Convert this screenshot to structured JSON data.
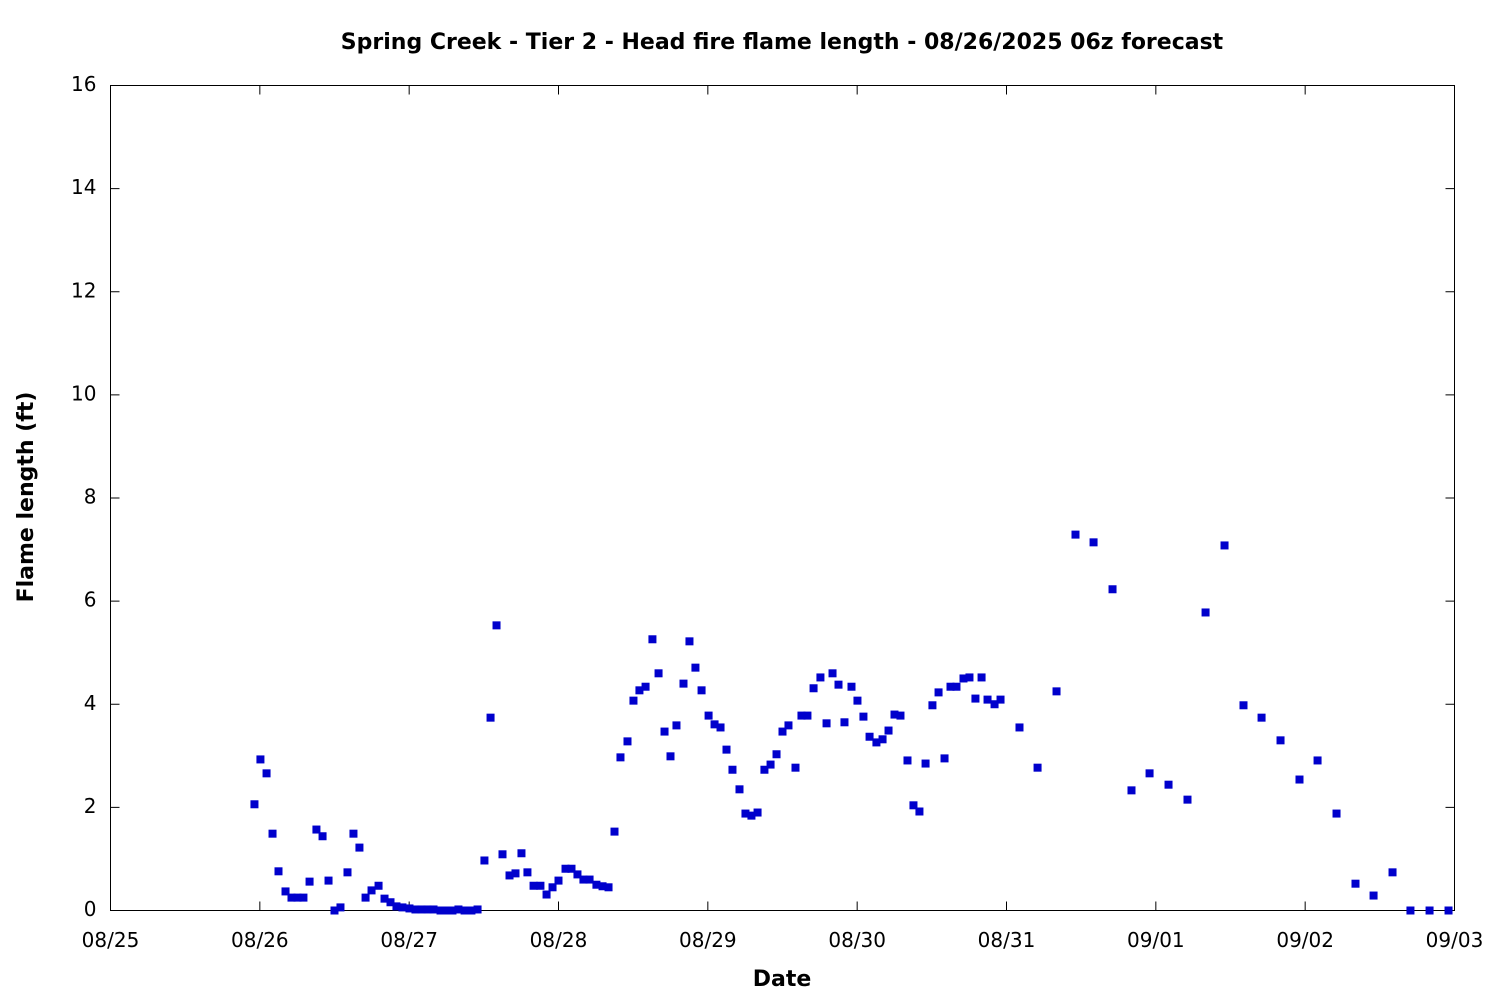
{
  "chart_data": {
    "type": "scatter",
    "title": "Spring Creek - Tier 2 - Head fire flame length - 08/26/2025 06z forecast",
    "x_label": "Date",
    "y_label": "Flame length (ft)",
    "color": "#0000cc",
    "xlim": [
      0,
      9
    ],
    "ylim": [
      0,
      16
    ],
    "grid": false,
    "xticks": [
      {
        "value": 0,
        "label": "08/25"
      },
      {
        "value": 1,
        "label": "08/26"
      },
      {
        "value": 2,
        "label": "08/27"
      },
      {
        "value": 3,
        "label": "08/28"
      },
      {
        "value": 4,
        "label": "08/29"
      },
      {
        "value": 5,
        "label": "08/30"
      },
      {
        "value": 6,
        "label": "08/31"
      },
      {
        "value": 7,
        "label": "09/01"
      },
      {
        "value": 8,
        "label": "09/02"
      },
      {
        "value": 9,
        "label": "09/03"
      }
    ],
    "yticks": [
      0,
      2,
      4,
      6,
      8,
      10,
      12,
      14,
      16
    ],
    "x": [
      0.964,
      1.004,
      1.045,
      1.085,
      1.125,
      1.172,
      1.212,
      1.252,
      1.292,
      1.333,
      1.379,
      1.42,
      1.46,
      1.5,
      1.54,
      1.587,
      1.627,
      1.667,
      1.708,
      1.748,
      1.795,
      1.835,
      1.875,
      1.915,
      1.955,
      2.002,
      2.042,
      2.083,
      2.123,
      2.163,
      2.21,
      2.25,
      2.29,
      2.33,
      2.371,
      2.417,
      2.458,
      2.504,
      2.545,
      2.585,
      2.625,
      2.672,
      2.712,
      2.752,
      2.792,
      2.833,
      2.879,
      2.92,
      2.96,
      3.0,
      3.047,
      3.087,
      3.127,
      3.167,
      3.208,
      3.254,
      3.295,
      3.335,
      3.375,
      3.415,
      3.462,
      3.502,
      3.542,
      3.583,
      3.629,
      3.67,
      3.71,
      3.75,
      3.79,
      3.837,
      3.877,
      3.917,
      3.958,
      4.005,
      4.045,
      4.085,
      4.125,
      4.165,
      4.212,
      4.252,
      4.292,
      4.333,
      4.379,
      4.42,
      4.46,
      4.5,
      4.54,
      4.587,
      4.627,
      4.667,
      4.708,
      4.754,
      4.795,
      4.835,
      4.875,
      4.915,
      4.962,
      5.002,
      5.042,
      5.083,
      5.129,
      5.17,
      5.21,
      5.25,
      5.29,
      5.337,
      5.377,
      5.417,
      5.458,
      5.504,
      5.545,
      5.585,
      5.625,
      5.665,
      5.712,
      5.752,
      5.792,
      5.833,
      5.873,
      5.92,
      5.96,
      6.087,
      6.208,
      6.335,
      6.462,
      6.583,
      6.71,
      6.837,
      6.958,
      7.085,
      7.212,
      7.333,
      7.46,
      7.587,
      7.708,
      7.835,
      7.962,
      8.083,
      8.21,
      8.337,
      8.458,
      8.585,
      8.705,
      8.833,
      8.96
    ],
    "values": [
      2.06,
      2.93,
      2.66,
      1.49,
      0.76,
      0.37,
      0.25,
      0.25,
      0.25,
      0.56,
      1.57,
      1.44,
      0.58,
      0,
      0.06,
      0.74,
      1.49,
      1.22,
      0.25,
      0.39,
      0.48,
      0.23,
      0.16,
      0.08,
      0.06,
      0.04,
      0.02,
      0.02,
      0.02,
      0.02,
      0,
      0,
      0,
      0.02,
      0,
      0,
      0.02,
      0.97,
      3.74,
      5.53,
      1.09,
      0.68,
      0.72,
      1.11,
      0.74,
      0.48,
      0.48,
      0.31,
      0.45,
      0.58,
      0.81,
      0.81,
      0.7,
      0.6,
      0.6,
      0.5,
      0.47,
      0.45,
      1.53,
      2.97,
      3.28,
      4.07,
      4.27,
      4.34,
      5.26,
      4.6,
      3.47,
      2.99,
      3.59,
      4.4,
      5.22,
      4.71,
      4.27,
      3.78,
      3.61,
      3.55,
      3.12,
      2.73,
      2.35,
      1.88,
      1.84,
      1.9,
      2.73,
      2.83,
      3.03,
      3.47,
      3.59,
      2.77,
      3.78,
      3.78,
      4.31,
      4.52,
      3.63,
      4.6,
      4.38,
      3.65,
      4.34,
      4.07,
      3.76,
      3.37,
      3.26,
      3.32,
      3.49,
      3.8,
      3.78,
      2.91,
      2.04,
      1.92,
      2.85,
      3.98,
      4.23,
      2.95,
      4.34,
      4.34,
      4.5,
      4.52,
      4.11,
      4.52,
      4.09,
      4,
      4.09,
      3.55,
      2.77,
      4.25,
      7.29,
      7.14,
      6.23,
      2.33,
      2.66,
      2.44,
      2.15,
      5.78,
      7.08,
      3.98,
      3.74,
      3.3,
      2.54,
      2.91,
      1.88,
      0.52,
      0.29,
      0.74,
      0,
      0,
      0
    ]
  }
}
